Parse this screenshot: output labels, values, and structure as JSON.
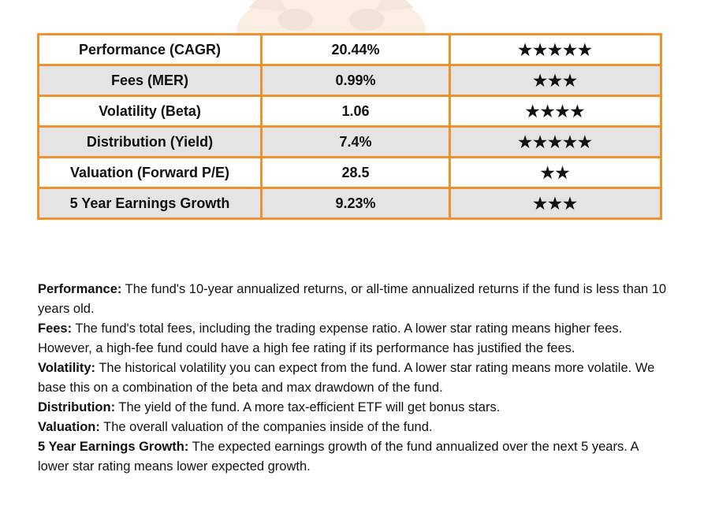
{
  "colors": {
    "border": "#f0922b",
    "shaded_row": "#e4e4e4",
    "text": "#111111"
  },
  "watermark": {
    "icon": "tiger-mascot-icon"
  },
  "table": {
    "rows": [
      {
        "label": "Performance (CAGR)",
        "value": "20.44%",
        "stars": "★★★★★",
        "star_count": 5
      },
      {
        "label": "Fees (MER)",
        "value": "0.99%",
        "stars": "★★★",
        "star_count": 3
      },
      {
        "label": "Volatility (Beta)",
        "value": "1.06",
        "stars": "★★★★",
        "star_count": 4
      },
      {
        "label": "Distribution (Yield)",
        "value": "7.4%",
        "stars": "★★★★★",
        "star_count": 5
      },
      {
        "label": "Valuation (Forward P/E)",
        "value": "28.5",
        "stars": "★★",
        "star_count": 2
      },
      {
        "label": "5 Year Earnings Growth",
        "value": "9.23%",
        "stars": "★★★",
        "star_count": 3
      }
    ]
  },
  "definitions": [
    {
      "term": "Performance:",
      "text": " The fund's 10-year annualized returns, or all-time annualized returns if the fund is less than 10 years old."
    },
    {
      "term": "Fees:",
      "text": " The fund's total fees, including the trading expense ratio. A lower star rating means higher fees. However, a high-fee fund could have a high fee rating if its performance has justified the fees."
    },
    {
      "term": "Volatility:",
      "text": " The historical volatility you can expect from the fund. A lower star rating means more volatile. We base this on a combination of the beta and max drawdown of the fund."
    },
    {
      "term": "Distribution:",
      "text": " The yield of the fund. A more tax-efficient ETF will get bonus stars."
    },
    {
      "term": "Valuation:",
      "text": " The overall valuation of the companies inside of the fund."
    },
    {
      "term": "5 Year Earnings Growth:",
      "text": " The expected earnings growth of the fund annualized over the next 5 years. A lower star rating means lower expected growth."
    }
  ]
}
